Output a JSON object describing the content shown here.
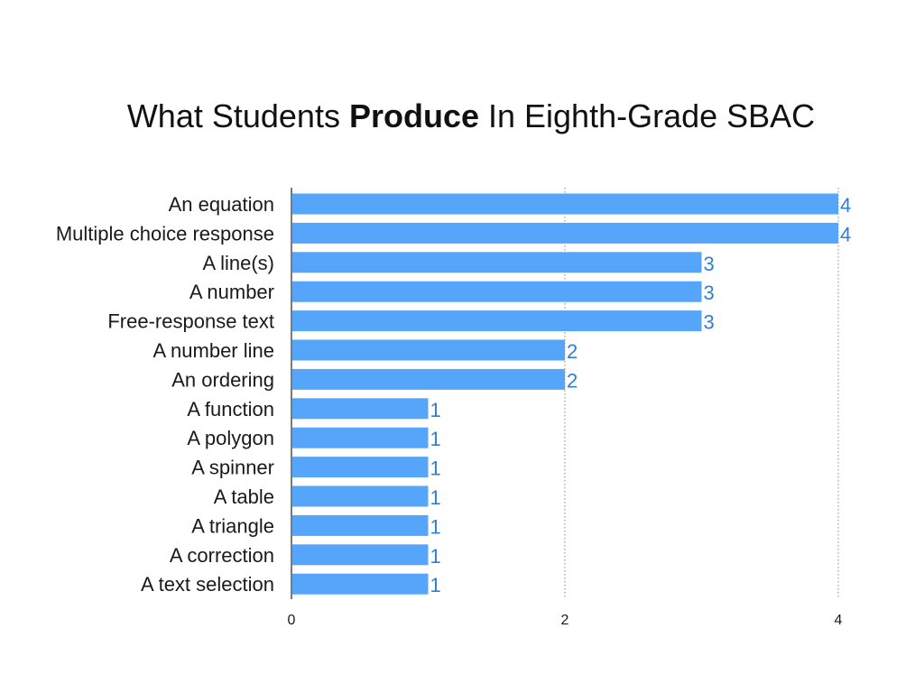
{
  "chart_data": {
    "type": "bar",
    "orientation": "horizontal",
    "title_prefix": "What Students ",
    "title_bold": "Produce",
    "title_suffix": " In Eighth-Grade SBAC",
    "categories": [
      "An equation",
      "Multiple choice response",
      "A line(s)",
      "A number",
      "Free-response text",
      "A number line",
      "An ordering",
      "A function",
      "A polygon",
      "A spinner",
      "A table",
      "A triangle",
      "A correction",
      "A text selection"
    ],
    "values": [
      4,
      4,
      3,
      3,
      3,
      2,
      2,
      1,
      1,
      1,
      1,
      1,
      1,
      1
    ],
    "xlim": [
      0,
      4
    ],
    "xticks": [
      0,
      2,
      4
    ],
    "xlabel": "",
    "ylabel": "",
    "grid": "vertical-dotted",
    "legend": "none",
    "bar_color": "#55a6fb",
    "value_label_color": "#2f7fd6"
  }
}
